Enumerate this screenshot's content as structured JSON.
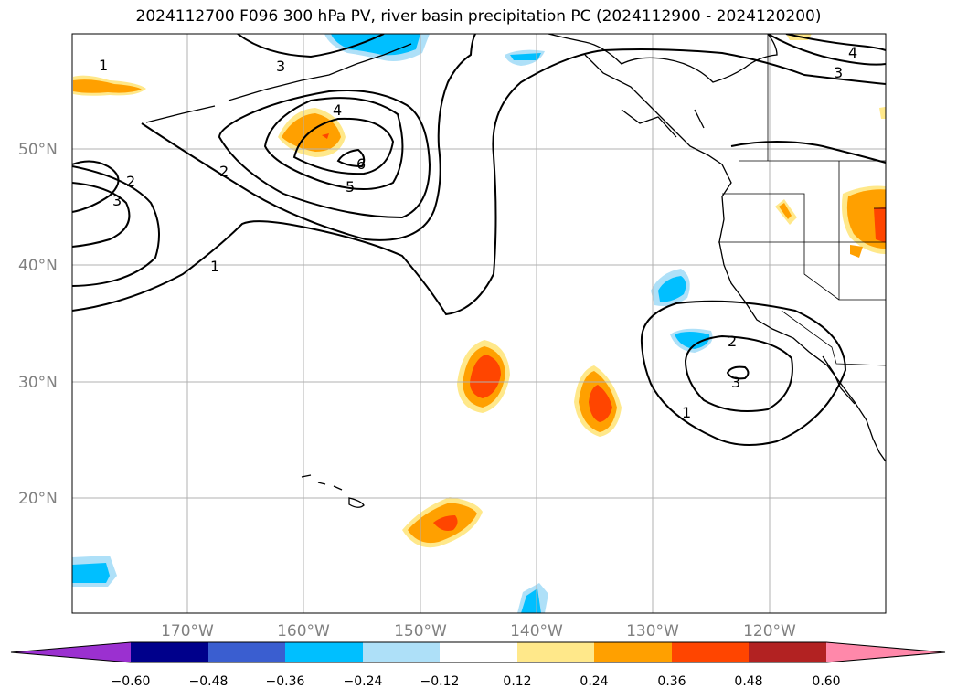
{
  "title": "2024112700 F096 300 hPa PV, river basin precipitation PC (2024112900 - 2024120200)",
  "lat_labels": [
    "50°N",
    "40°N",
    "30°N",
    "20°N"
  ],
  "lon_labels": [
    "170°W",
    "160°W",
    "150°W",
    "140°W",
    "130°W",
    "120°W"
  ],
  "pv_contour_labels": [
    "1",
    "3",
    "4",
    "2",
    "6",
    "5",
    "2",
    "3",
    "1",
    "3",
    "4",
    "2",
    "3",
    "1"
  ],
  "colorbar": {
    "colors": [
      "#9b30d0",
      "#00008b",
      "#3a5ed0",
      "#00bfff",
      "#aee0f8",
      "#ffffff",
      "#ffe88a",
      "#ffa000",
      "#ff4500",
      "#b22222",
      "#ff88aa"
    ],
    "tick_labels": [
      "−0.60",
      "−0.48",
      "−0.36",
      "−0.24",
      "−0.12",
      "0.12",
      "0.24",
      "0.36",
      "0.48",
      "0.60"
    ]
  },
  "palette": {
    "pv_line": "#000000",
    "grid": "#b0b0b0",
    "axis_label": "#808080"
  }
}
